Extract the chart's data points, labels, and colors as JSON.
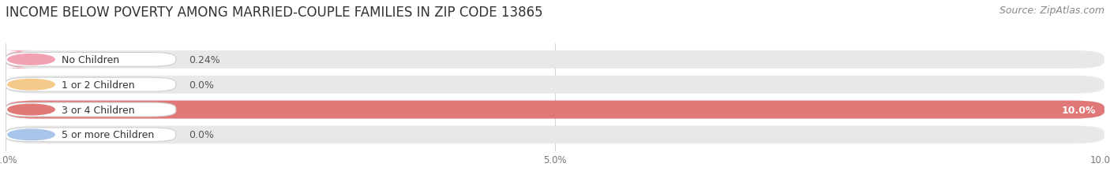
{
  "title": "INCOME BELOW POVERTY AMONG MARRIED-COUPLE FAMILIES IN ZIP CODE 13865",
  "source": "Source: ZipAtlas.com",
  "categories": [
    "No Children",
    "1 or 2 Children",
    "3 or 4 Children",
    "5 or more Children"
  ],
  "values": [
    0.24,
    0.0,
    10.0,
    0.0
  ],
  "bar_colors": [
    "#f2a0b4",
    "#f5c98a",
    "#e07878",
    "#a8c4e8"
  ],
  "value_labels": [
    "0.24%",
    "0.0%",
    "10.0%",
    "0.0%"
  ],
  "xlim": [
    0,
    10.0
  ],
  "xticks": [
    0.0,
    5.0,
    10.0
  ],
  "xticklabels": [
    "0.0%",
    "5.0%",
    "10.0%"
  ],
  "bg_color": "#ffffff",
  "bar_bg_color": "#e8e8e8",
  "title_fontsize": 12,
  "source_fontsize": 9,
  "label_fontsize": 9,
  "value_fontsize": 9
}
